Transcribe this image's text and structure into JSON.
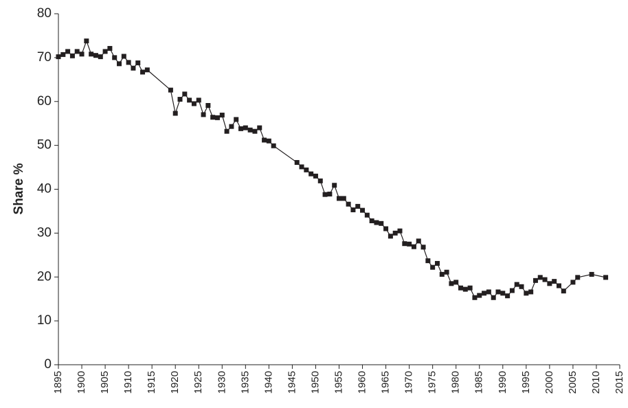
{
  "chart_data": {
    "type": "line",
    "y_label": "Share %",
    "x": [
      1895,
      1896,
      1897,
      1898,
      1899,
      1900,
      1901,
      1902,
      1903,
      1904,
      1905,
      1906,
      1907,
      1908,
      1909,
      1910,
      1911,
      1912,
      1913,
      1914,
      1919,
      1920,
      1921,
      1922,
      1923,
      1924,
      1925,
      1926,
      1927,
      1928,
      1929,
      1930,
      1931,
      1932,
      1933,
      1934,
      1935,
      1936,
      1937,
      1938,
      1939,
      1940,
      1941,
      1946,
      1947,
      1948,
      1949,
      1950,
      1951,
      1952,
      1953,
      1954,
      1955,
      1956,
      1957,
      1958,
      1959,
      1960,
      1961,
      1962,
      1963,
      1964,
      1965,
      1966,
      1967,
      1968,
      1969,
      1970,
      1971,
      1972,
      1973,
      1974,
      1975,
      1976,
      1977,
      1978,
      1979,
      1980,
      1981,
      1982,
      1983,
      1984,
      1985,
      1986,
      1987,
      1988,
      1989,
      1990,
      1991,
      1992,
      1993,
      1994,
      1995,
      1996,
      1997,
      1998,
      1999,
      2000,
      2001,
      2002,
      2003,
      2005,
      2006,
      2009,
      2012
    ],
    "series": [
      {
        "name": "Share",
        "color": "#231f20",
        "values": [
          70.2,
          70.7,
          71.4,
          70.4,
          71.4,
          70.8,
          73.8,
          70.8,
          70.5,
          70.2,
          71.4,
          72.1,
          70.0,
          68.6,
          70.3,
          68.9,
          67.6,
          68.8,
          66.7,
          67.2,
          62.6,
          57.3,
          60.5,
          61.7,
          60.3,
          59.5,
          60.3,
          57.0,
          59.1,
          56.4,
          56.3,
          56.9,
          53.2,
          54.3,
          55.9,
          53.8,
          54.0,
          53.5,
          53.2,
          54.0,
          51.2,
          51.0,
          49.9,
          46.1,
          45.1,
          44.4,
          43.5,
          43.0,
          41.9,
          38.8,
          38.9,
          40.9,
          37.9,
          37.9,
          36.6,
          35.3,
          36.1,
          35.2,
          34.1,
          32.8,
          32.4,
          32.2,
          31.0,
          29.3,
          30.0,
          30.5,
          27.6,
          27.5,
          26.9,
          28.2,
          26.8,
          23.7,
          22.2,
          23.1,
          20.6,
          21.1,
          18.5,
          18.8,
          17.5,
          17.2,
          17.5,
          15.3,
          15.8,
          16.3,
          16.6,
          15.3,
          16.6,
          16.3,
          15.7,
          16.9,
          18.3,
          17.8,
          16.3,
          16.6,
          19.2,
          19.9,
          19.4,
          18.5,
          19.0,
          18.0,
          16.8,
          18.8,
          19.9,
          20.6,
          19.9
        ]
      }
    ],
    "xlim": [
      1895,
      2015
    ],
    "xticks": [
      1895,
      1900,
      1905,
      1910,
      1915,
      1920,
      1925,
      1930,
      1935,
      1940,
      1945,
      1950,
      1955,
      1960,
      1965,
      1970,
      1975,
      1980,
      1985,
      1990,
      1995,
      2000,
      2005,
      2010,
      2015
    ],
    "ylim": [
      0,
      80
    ],
    "yticks": [
      0,
      10,
      20,
      30,
      40,
      50,
      60,
      70,
      80
    ],
    "grid": false,
    "marker": "square"
  }
}
